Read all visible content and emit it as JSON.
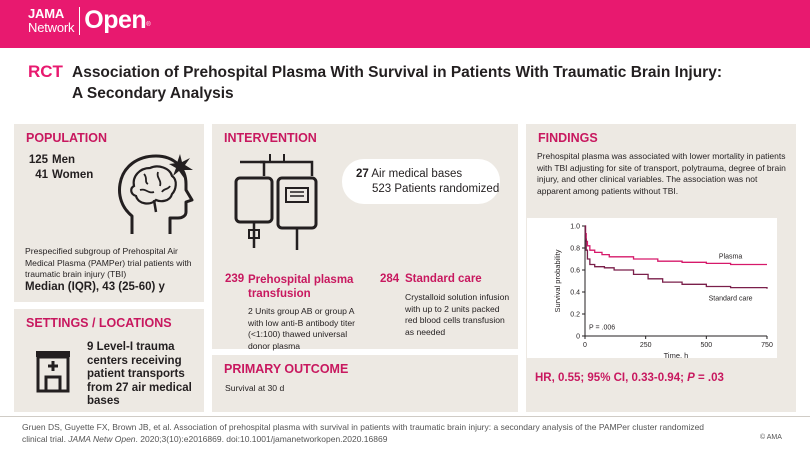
{
  "header": {
    "logo_line1": "JAMA",
    "logo_line2": "Network",
    "logo_word": "Open",
    "logo_mark": "®",
    "color": "#e8196f"
  },
  "title": {
    "tag": "RCT",
    "text": "Association of Prehospital Plasma With Survival in Patients With Traumatic Brain Injury: A Secondary Analysis"
  },
  "population": {
    "heading": "POPULATION",
    "men_count": "125",
    "men_label": "Men",
    "women_count": "41",
    "women_label": "Women",
    "description": "Prespecified subgroup of Prehospital Air Medical Plasma (PAMPer) trial patients with traumatic brain injury (TBI)",
    "age": "Median (IQR), 43 (25-60) y",
    "icon": "brain-head-icon"
  },
  "settings": {
    "heading": "SETTINGS / LOCATIONS",
    "text": "9 Level-I trauma centers receiving patient transports from 27 air medical bases",
    "icon": "hospital-icon"
  },
  "intervention": {
    "heading": "INTERVENTION",
    "bases_count": "27",
    "bases_label": "Air medical bases",
    "randomized_count": "523",
    "randomized_label": "Patients randomized",
    "icon": "blood-bags-icon",
    "arm1": {
      "count": "239",
      "title": "Prehospital plasma transfusion",
      "desc": "2 Units group AB or group A with low anti-B antibody titer (<1:100) thawed universal donor plasma"
    },
    "arm2": {
      "count": "284",
      "title": "Standard care",
      "desc": "Crystalloid solution infusion with up to 2 units packed red blood cells transfusion as needed"
    }
  },
  "outcome": {
    "heading": "PRIMARY OUTCOME",
    "text": "Survival at 30 d"
  },
  "findings": {
    "heading": "FINDINGS",
    "text": "Prehospital plasma was associated with lower mortality in patients with TBI adjusting for site of transport, polytrauma, degree of brain injury, and other clinical variables. The association was not apparent among patients without TBI.",
    "hr_text": "HR, 0.55; 95% CI, 0.33-0.94; ",
    "p_label": "P",
    "p_value": " = .03"
  },
  "chart_data": {
    "type": "line",
    "xlabel": "Time, h",
    "ylabel": "Survival probability",
    "xlim": [
      0,
      750
    ],
    "ylim": [
      0,
      1.0
    ],
    "xticks": [
      "0",
      "250",
      "500",
      "750"
    ],
    "yticks": [
      "0",
      "0.2",
      "0.4",
      "0.6",
      "0.8",
      "1.0"
    ],
    "annotation": "P = .006",
    "series": [
      {
        "name": "Plasma",
        "color": "#d6196a",
        "x": [
          0,
          2,
          5,
          10,
          20,
          40,
          70,
          100,
          200,
          300,
          400,
          500,
          600,
          750
        ],
        "y": [
          1.0,
          0.93,
          0.86,
          0.82,
          0.78,
          0.76,
          0.74,
          0.72,
          0.7,
          0.68,
          0.67,
          0.66,
          0.65,
          0.65
        ]
      },
      {
        "name": "Standard care",
        "color": "#7a1f4a",
        "x": [
          0,
          2,
          5,
          10,
          20,
          40,
          80,
          120,
          200,
          260,
          320,
          400,
          500,
          600,
          750
        ],
        "y": [
          1.0,
          0.88,
          0.78,
          0.7,
          0.65,
          0.63,
          0.62,
          0.6,
          0.56,
          0.52,
          0.49,
          0.47,
          0.45,
          0.44,
          0.43
        ]
      }
    ]
  },
  "footer": {
    "citation_a": "Gruen DS, Guyette FX, Brown JB, et al. Association of prehospital plasma with survival in patients with traumatic brain injury: a secondary analysis of the PAMPer cluster randomized clinical trial. ",
    "journal": "JAMA Netw Open",
    "citation_b": ". 2020;3(10):e2016869. doi:10.1001/jamanetworkopen.2020.16869",
    "copyright": "© AMA"
  }
}
